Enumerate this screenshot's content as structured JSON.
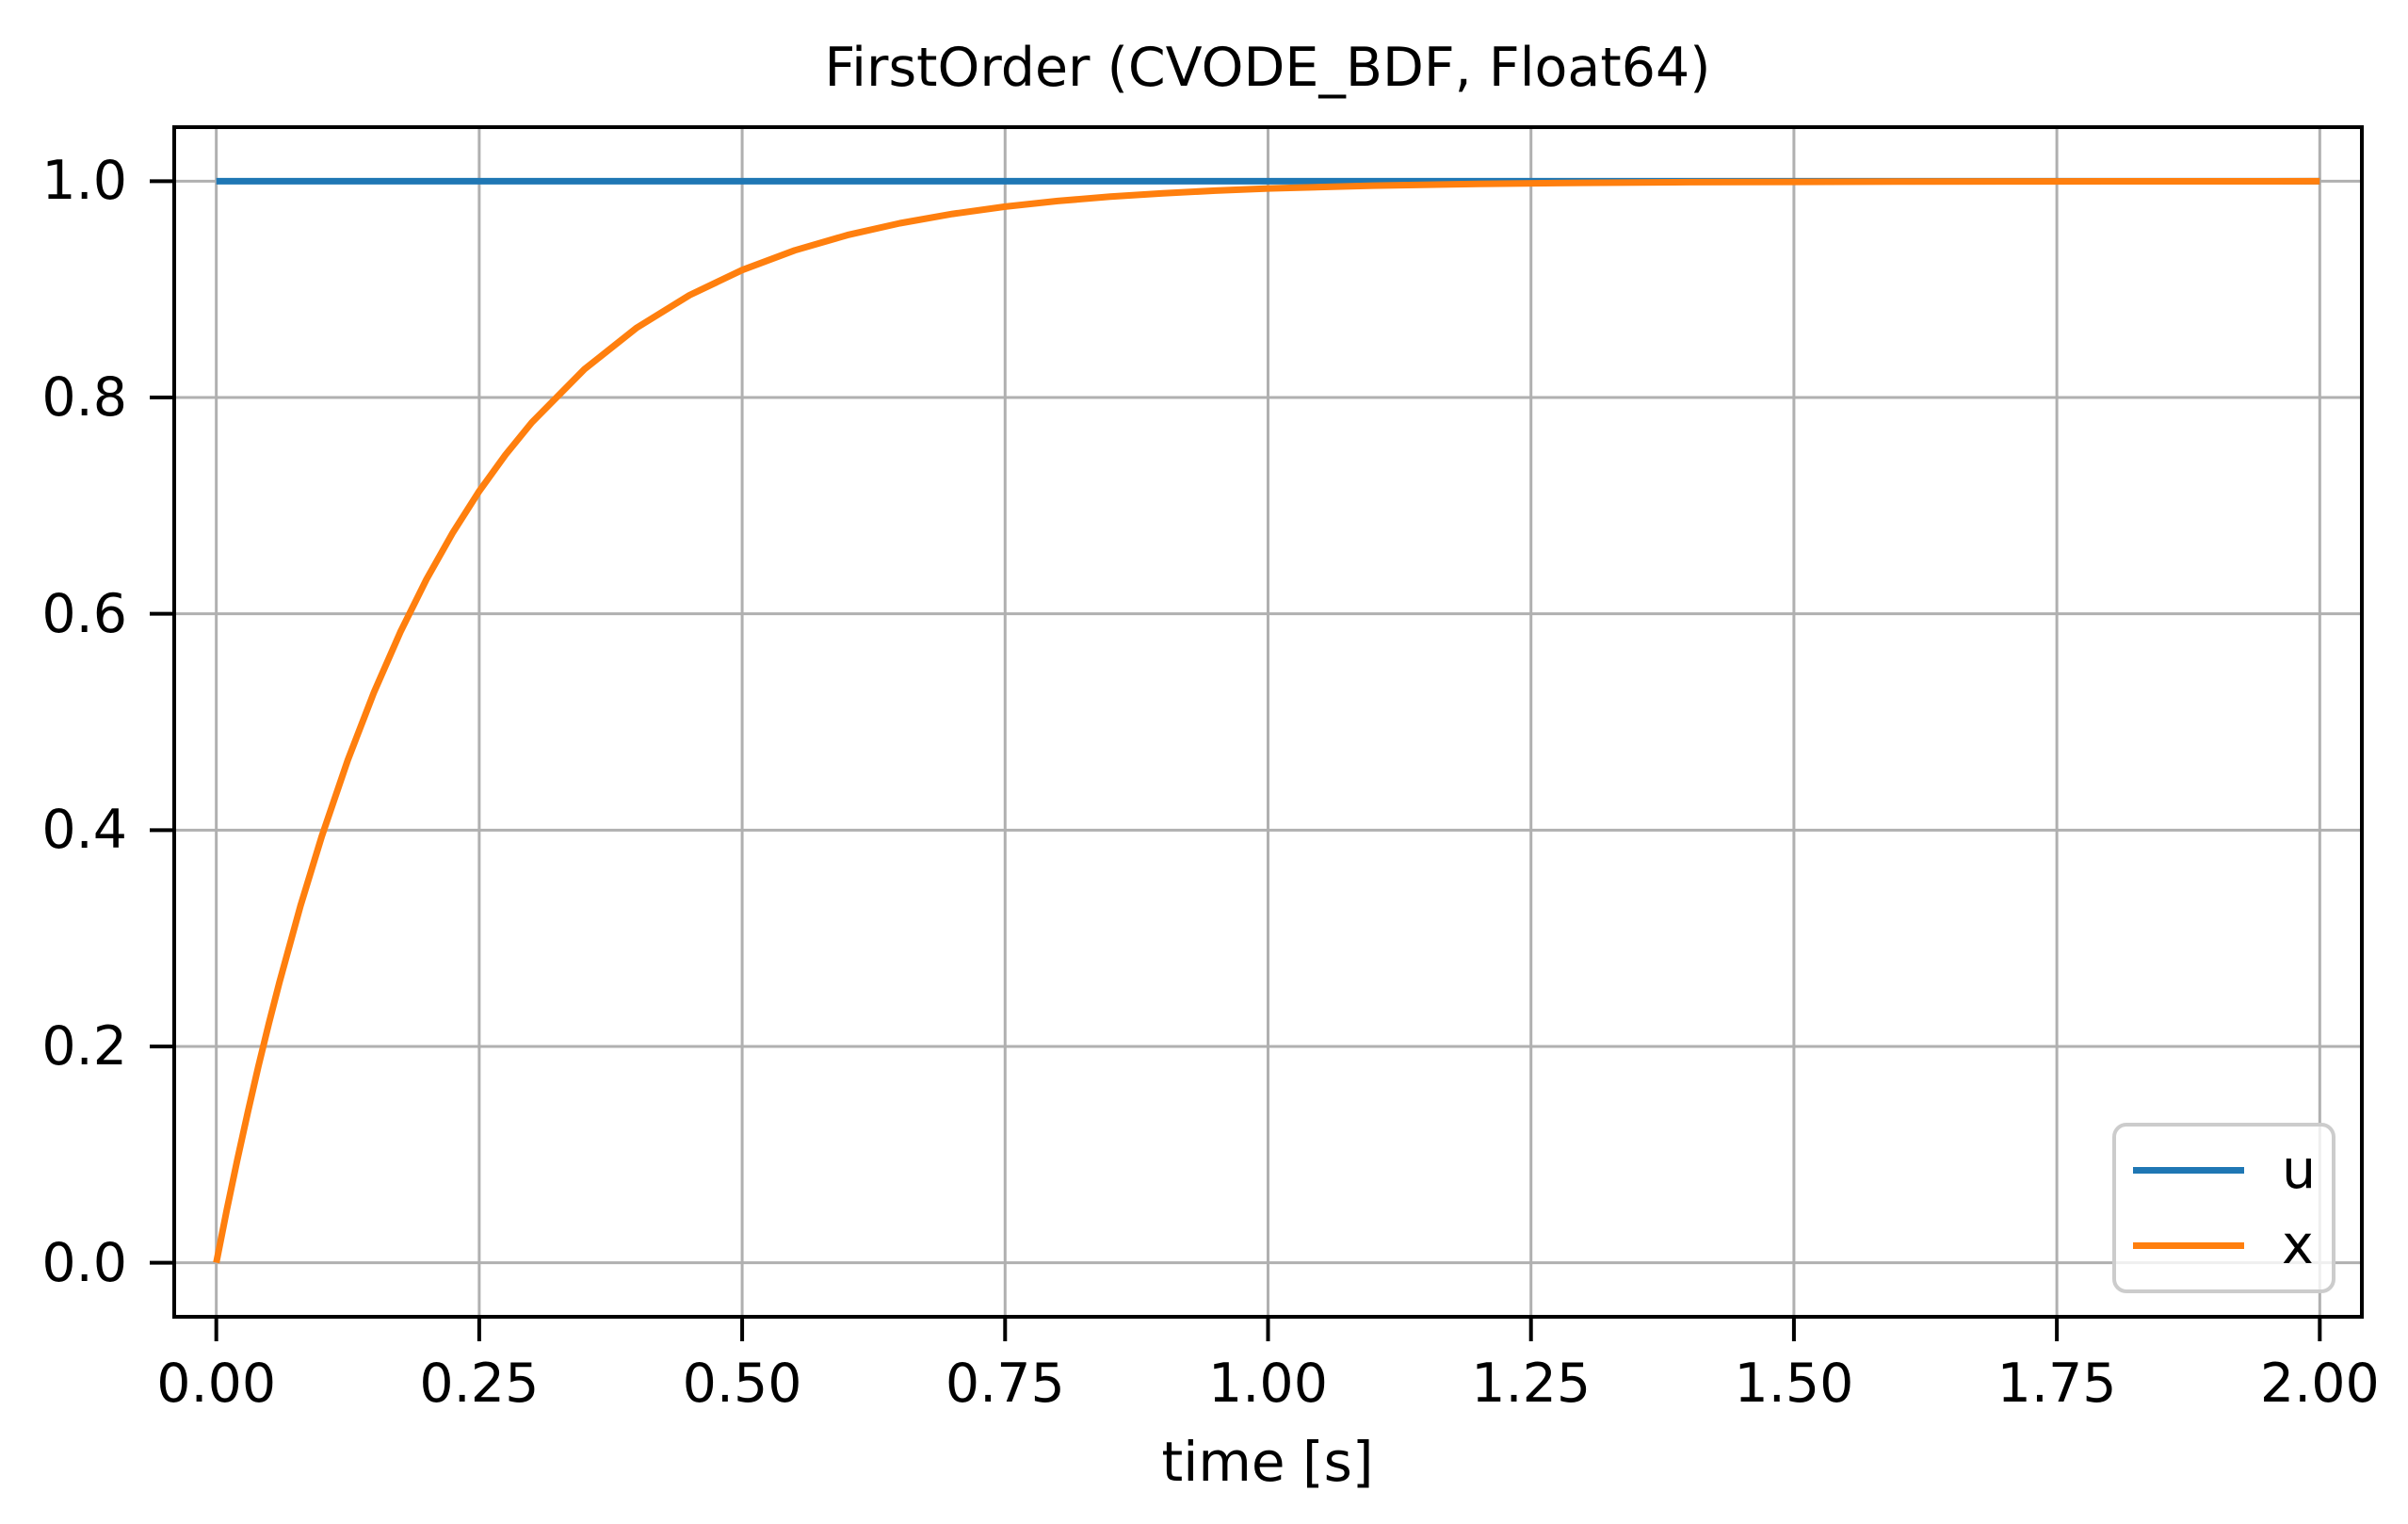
{
  "figure": {
    "title": "FirstOrder (CVODE_BDF, Float64)",
    "xlabel": "time [s]",
    "background_color": "#ffffff"
  },
  "legend": {
    "position": "lower right",
    "items": [
      {
        "label": "u",
        "color": "#1f77b4"
      },
      {
        "label": "x",
        "color": "#ff7f0e"
      }
    ]
  },
  "chart_data": {
    "type": "line",
    "title": "FirstOrder (CVODE_BDF, Float64)",
    "xlabel": "time [s]",
    "ylabel": "",
    "xlim": [
      -0.04,
      2.04
    ],
    "ylim": [
      -0.05,
      1.05
    ],
    "grid": true,
    "grid_color": "#b0b0b0",
    "spine_color": "#000000",
    "tick_color": "#000000",
    "legend_position": "lower right",
    "x_ticks": [
      0,
      0.25,
      0.5,
      0.75,
      1.0,
      1.25,
      1.5,
      1.75,
      2.0
    ],
    "x_tick_labels": [
      "0.00",
      "0.25",
      "0.50",
      "0.75",
      "1.00",
      "1.25",
      "1.50",
      "1.75",
      "2.00"
    ],
    "y_ticks": [
      0.0,
      0.2,
      0.4,
      0.6,
      0.8,
      1.0
    ],
    "y_tick_labels": [
      "0.0",
      "0.2",
      "0.4",
      "0.6",
      "0.8",
      "1.0"
    ],
    "series": [
      {
        "name": "u",
        "color": "#1f77b4",
        "line_width": 7,
        "x": [
          0,
          2
        ],
        "y": [
          1,
          1
        ]
      },
      {
        "name": "x",
        "color": "#ff7f0e",
        "line_width": 7,
        "description": "first-order step response, x(t) = 1 - exp(-t/0.2)",
        "x": [
          0,
          0.01,
          0.02,
          0.03,
          0.04,
          0.05,
          0.06,
          0.08,
          0.1,
          0.125,
          0.15,
          0.175,
          0.2,
          0.225,
          0.25,
          0.275,
          0.3,
          0.35,
          0.4,
          0.45,
          0.5,
          0.55,
          0.6,
          0.65,
          0.7,
          0.75,
          0.8,
          0.85,
          0.9,
          0.95,
          1.0,
          1.1,
          1.2,
          1.3,
          1.4,
          1.5,
          1.6,
          1.7,
          1.8,
          1.9,
          2.0
        ],
        "y": [
          0,
          0.0488,
          0.0952,
          0.1393,
          0.1813,
          0.2212,
          0.2592,
          0.3297,
          0.3935,
          0.4647,
          0.5276,
          0.5831,
          0.6321,
          0.6753,
          0.7135,
          0.7471,
          0.7769,
          0.8262,
          0.8647,
          0.8946,
          0.9179,
          0.9361,
          0.9502,
          0.9612,
          0.9698,
          0.9765,
          0.9817,
          0.9857,
          0.9889,
          0.9913,
          0.9933,
          0.9959,
          0.9975,
          0.9985,
          0.9991,
          0.9994,
          0.9997,
          0.9998,
          0.9999,
          0.9999,
          1.0
        ]
      }
    ]
  }
}
